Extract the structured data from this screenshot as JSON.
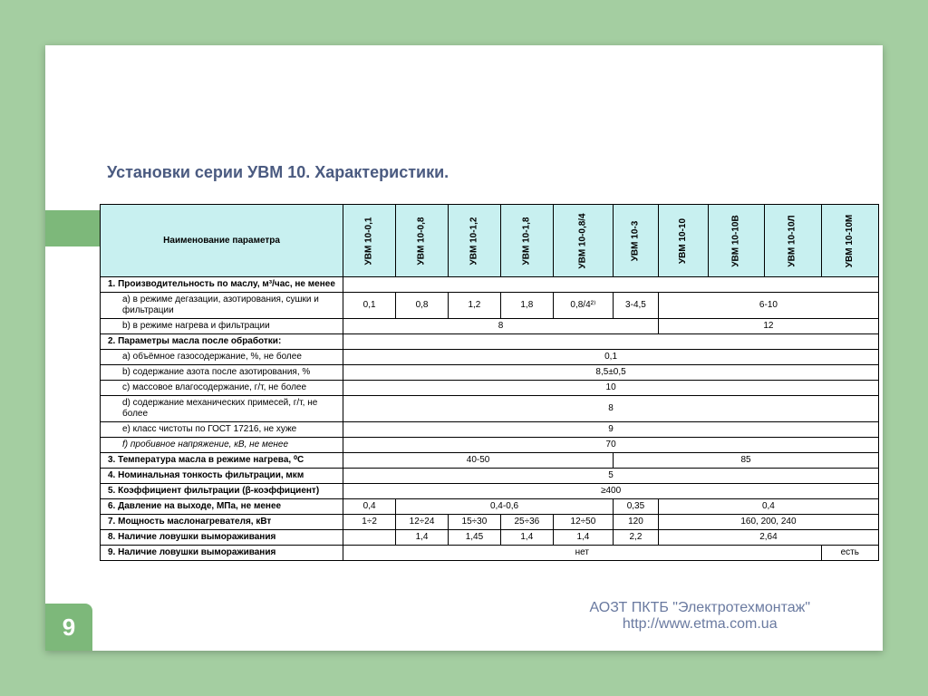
{
  "page": {
    "number": "9",
    "title": "Установки серии УВМ 10. Характеристики.",
    "footer_line1": "АОЗТ ПКТБ \"Электротехмонтаж\"",
    "footer_line2": "http://www.etma.com.ua"
  },
  "colors": {
    "page_bg": "#a4cea1",
    "slide_bg": "#ffffff",
    "accent_green": "#7db87a",
    "header_cell_bg": "#c8f0f0",
    "title_color": "#4a5a80",
    "footer_color": "#6a7aa0"
  },
  "table": {
    "param_head": "Наименование параметра",
    "columns": [
      "УВМ 10-0,1",
      "УВМ 10-0,8",
      "УВМ 10-1,2",
      "УВМ 10-1,8",
      "УВМ 10-0,8/4",
      "УВМ 10-3",
      "УВМ 10-10",
      "УВМ 10-10В",
      "УВМ 10-10Л",
      "УВМ 10-10М"
    ],
    "rows": {
      "r1": {
        "label": "1.  Производительность по маслу, м³/час, не менее"
      },
      "r1a": {
        "label": "a)   в режиме дегазации, азотирования, сушки и фильтрации",
        "v0": "0,1",
        "v1": "0,8",
        "v2": "1,2",
        "v3": "1,8",
        "v4": "0,8/4²⁾",
        "v5": "3-4,5",
        "v6": "6-10"
      },
      "r1b": {
        "label": "b)   в режиме нагрева и фильтрации",
        "v0": "8",
        "v1": "12"
      },
      "r2": {
        "label": "2.  Параметры масла после обработки:"
      },
      "r2a": {
        "label": "a)   объёмное газосодержание, %, не более",
        "v": "0,1"
      },
      "r2b": {
        "label": "b)   содержание азота после азотирования, %",
        "v": "8,5±0,5"
      },
      "r2c": {
        "label": "c)   массовое влагосодержание, г/т, не более",
        "v": "10"
      },
      "r2d": {
        "label": "d)   содержание механических примесей, г/т, не более",
        "v": "8"
      },
      "r2e": {
        "label": "e)   класс чистоты по ГОСТ 17216, не хуже",
        "v": "9"
      },
      "r2f": {
        "label": "f)    пробивное напряжение, кВ, не менее",
        "v": "70"
      },
      "r3": {
        "label": "3.  Температура масла в режиме нагрева, ⁰С",
        "v0": "40-50",
        "v1": "85"
      },
      "r4": {
        "label": "4.  Номинальная тонкость фильтрации, мкм",
        "v": "5"
      },
      "r5": {
        "label": "5.  Коэффициент фильтрации (β-коэффициент)",
        "v": "≥400"
      },
      "r6": {
        "label": "6.  Давление на выходе, МПа, не менее",
        "v0": "0,4",
        "v1": "0,4-0,6",
        "v2": "0,35",
        "v3": "0,4"
      },
      "r7": {
        "label": "7.  Мощность маслонагревателя, кВт",
        "v0": "1÷2",
        "v1": "12÷24",
        "v2": "15÷30",
        "v3": "25÷36",
        "v4": "12÷50",
        "v5": "120",
        "v6": "160, 200, 240"
      },
      "r8": {
        "label": "8.  Наличие ловушки вымораживания",
        "v0": "1,4",
        "v1": "1,45",
        "v2": "1,4",
        "v3": "1,4",
        "v4": "2,2",
        "v5": "2,64"
      },
      "r9": {
        "label": "9.  Наличие ловушки вымораживания",
        "v0": "нет",
        "v1": "есть"
      }
    }
  }
}
